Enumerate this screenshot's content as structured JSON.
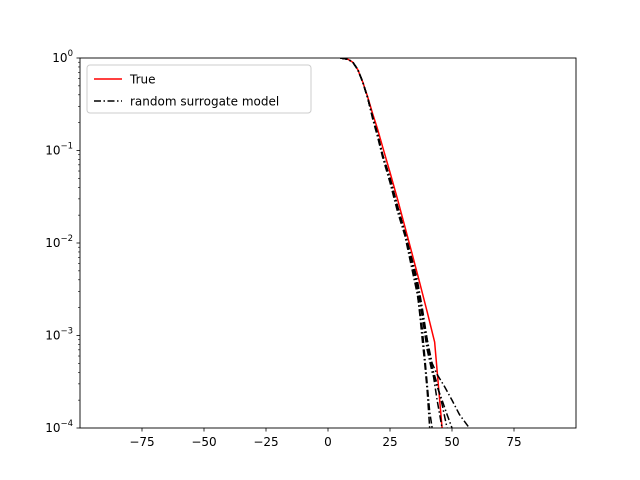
{
  "chart_data": {
    "type": "line",
    "title": "",
    "xlabel": "",
    "ylabel": "",
    "xlim": [
      -100,
      100
    ],
    "ylim": [
      0.0001,
      1
    ],
    "yscale": "log",
    "grid": false,
    "legend_placement": "upper-left",
    "x_ticks": [
      -75,
      -50,
      -25,
      0,
      25,
      50,
      75
    ],
    "x_tick_labels": [
      "−75",
      "−50",
      "−25",
      "0",
      "25",
      "50",
      "75"
    ],
    "y_ticks": [
      {
        "value": 0.0001,
        "base": "10",
        "exp": "−4"
      },
      {
        "value": 0.001,
        "base": "10",
        "exp": "−3"
      },
      {
        "value": 0.01,
        "base": "10",
        "exp": "−2"
      },
      {
        "value": 0.1,
        "base": "10",
        "exp": "−1"
      },
      {
        "value": 1,
        "base": "10",
        "exp": "0"
      }
    ],
    "legend": [
      {
        "label": "True",
        "color": "#ff0000",
        "style": "solid"
      },
      {
        "label": "random surrogate model",
        "color": "#000000",
        "style": "dashdot"
      }
    ],
    "series": [
      {
        "name": "True",
        "color": "#ff0000",
        "style": "solid",
        "x": [
          5,
          8,
          10,
          12,
          14,
          16,
          18,
          20,
          22,
          25,
          28,
          31,
          34,
          37,
          40,
          43,
          46
        ],
        "y": [
          1.0,
          0.97,
          0.9,
          0.75,
          0.55,
          0.38,
          0.25,
          0.17,
          0.11,
          0.058,
          0.03,
          0.015,
          0.0075,
          0.0037,
          0.0018,
          0.00085,
          0.0001
        ]
      },
      {
        "name": "",
        "color": "#000000",
        "style": "dashdot",
        "x": [
          5,
          8,
          10,
          12,
          14,
          16,
          18,
          20,
          22,
          25,
          28,
          31,
          34,
          36,
          38,
          39,
          40,
          41,
          42
        ],
        "y": [
          1.0,
          0.97,
          0.9,
          0.75,
          0.55,
          0.37,
          0.22,
          0.14,
          0.085,
          0.045,
          0.022,
          0.012,
          0.005,
          0.0028,
          0.0012,
          0.0006,
          0.0003,
          0.00015,
          0.0001
        ]
      },
      {
        "name": "",
        "color": "#000000",
        "style": "dashdot",
        "x": [
          5,
          8,
          10,
          12,
          14,
          16,
          18,
          20,
          22,
          25,
          28,
          31,
          34,
          36,
          38,
          40,
          42,
          44,
          46
        ],
        "y": [
          1.0,
          0.97,
          0.9,
          0.75,
          0.55,
          0.37,
          0.23,
          0.15,
          0.09,
          0.05,
          0.025,
          0.013,
          0.006,
          0.0035,
          0.0018,
          0.0009,
          0.00045,
          0.0002,
          0.0001
        ]
      },
      {
        "name": "",
        "color": "#000000",
        "style": "dashdot",
        "x": [
          5,
          8,
          10,
          12,
          14,
          16,
          18,
          20,
          22,
          25,
          28,
          31,
          34,
          36,
          38,
          40,
          42,
          44,
          47,
          50,
          53,
          57
        ],
        "y": [
          1.0,
          0.97,
          0.9,
          0.75,
          0.55,
          0.37,
          0.23,
          0.15,
          0.09,
          0.05,
          0.025,
          0.013,
          0.0065,
          0.004,
          0.002,
          0.0009,
          0.0005,
          0.00038,
          0.00028,
          0.0002,
          0.00014,
          0.0001
        ]
      },
      {
        "name": "",
        "color": "#000000",
        "style": "dashdot",
        "x": [
          5,
          8,
          10,
          12,
          14,
          16,
          18,
          20,
          22,
          25,
          28,
          31,
          34,
          36,
          38,
          40,
          42,
          44,
          46,
          48,
          50
        ],
        "y": [
          1.0,
          0.97,
          0.9,
          0.75,
          0.55,
          0.37,
          0.23,
          0.15,
          0.09,
          0.05,
          0.025,
          0.013,
          0.006,
          0.0035,
          0.0016,
          0.0007,
          0.0004,
          0.00028,
          0.0002,
          0.00014,
          0.0001
        ]
      },
      {
        "name": "",
        "color": "#000000",
        "style": "dashdot",
        "x": [
          5,
          8,
          10,
          12,
          14,
          16,
          18,
          20,
          22,
          25,
          28,
          31,
          34,
          36,
          38,
          40,
          42,
          44,
          46,
          48
        ],
        "y": [
          1.0,
          0.97,
          0.9,
          0.75,
          0.55,
          0.37,
          0.23,
          0.15,
          0.09,
          0.05,
          0.025,
          0.013,
          0.006,
          0.0035,
          0.0017,
          0.0008,
          0.00045,
          0.0003,
          0.00018,
          0.0001
        ]
      },
      {
        "name": "",
        "color": "#000000",
        "style": "dashdot",
        "x": [
          5,
          8,
          10,
          12,
          14,
          16,
          18,
          20,
          22,
          25,
          28,
          31,
          34,
          36,
          37,
          38,
          39,
          40,
          41
        ],
        "y": [
          1.0,
          0.97,
          0.9,
          0.75,
          0.55,
          0.37,
          0.23,
          0.15,
          0.09,
          0.05,
          0.025,
          0.013,
          0.006,
          0.003,
          0.0017,
          0.0009,
          0.0005,
          0.00025,
          0.0001
        ]
      }
    ]
  }
}
